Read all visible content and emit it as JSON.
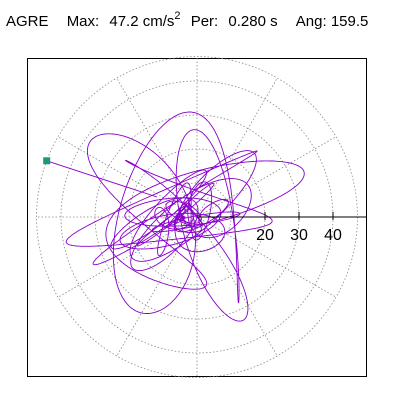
{
  "header": {
    "station": "AGRE",
    "max_label": "Max:",
    "max_value": "47.2 cm/s",
    "max_exp": "2",
    "per_label": "Per:",
    "per_value": "0.280 s",
    "ang_label": "Ang:",
    "ang_value": "159.5"
  },
  "chart_data": {
    "type": "polar-hodogram",
    "title": "",
    "radial_ticks": [
      20,
      30,
      40
    ],
    "radial_tick_labels": [
      "20",
      "30",
      "40"
    ],
    "radial_max": 47.2,
    "grid": "dotted polar grid, 30° spokes",
    "angle_deg": 159.5,
    "peak_value": 47.2,
    "peak_marker": {
      "r": 47.2,
      "theta_deg": 159.5
    },
    "series": [
      {
        "type": "particle-motion trace",
        "color": "#8800cc"
      }
    ],
    "colors": {
      "trace": "#8800cc",
      "marker": "#1a9a7a",
      "grid": "#888888",
      "axis": "#000000"
    }
  }
}
